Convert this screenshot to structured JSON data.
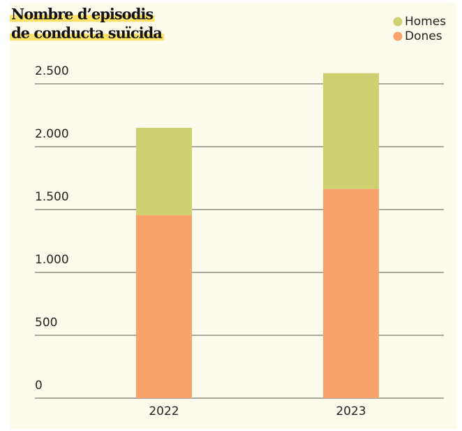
{
  "chart_data": {
    "type": "stacked-bar",
    "title": [
      "Nombre d’episodis",
      "de conducta suïcida"
    ],
    "categories": [
      "2022",
      "2023"
    ],
    "series": [
      {
        "name": "Dones",
        "color": "#f9a26c",
        "values": [
          1455,
          1665
        ]
      },
      {
        "name": "Homes",
        "color": "#cdd16f",
        "values": [
          695,
          920
        ]
      }
    ],
    "legend_order": [
      "Homes",
      "Dones"
    ],
    "ylim": [
      0,
      2500
    ],
    "yticks": [
      0,
      500,
      {
        "value": 1000,
        "label": "1.000"
      },
      {
        "value": 1500,
        "label": "1.500"
      },
      {
        "value": 2000,
        "label": "2.000"
      },
      {
        "value": 2500,
        "label": "2.500"
      }
    ],
    "grid": true
  }
}
